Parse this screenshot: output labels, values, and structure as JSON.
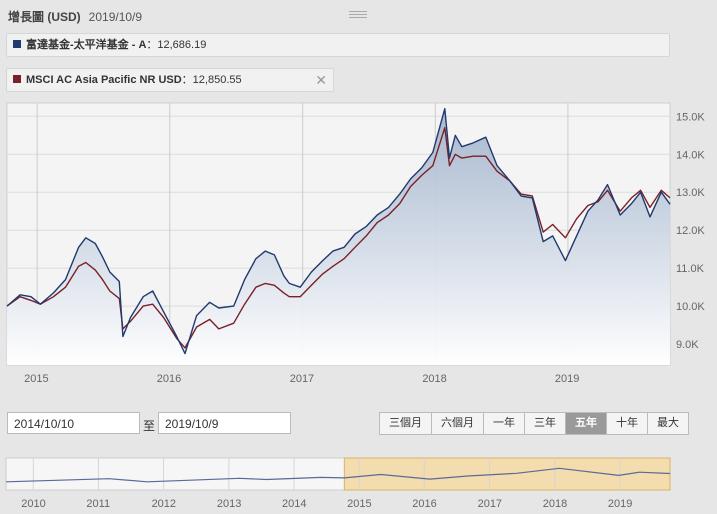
{
  "header": {
    "title": "增長圖 (USD)",
    "date": "2019/10/9"
  },
  "legend": [
    {
      "name": "富達基金-太平洋基金 - A",
      "value": "12,686.19",
      "color": "#1f3a6e"
    },
    {
      "name": "MSCI AC Asia Pacific NR USD",
      "value": "12,850.55",
      "color": "#7a2028",
      "closable": true
    }
  ],
  "colon": "：",
  "range": {
    "start": "2014/10/10",
    "to_label": "至",
    "end": "2019/10/9"
  },
  "period_buttons": [
    "三個月",
    "六個月",
    "一年",
    "三年",
    "五年",
    "十年",
    "最大"
  ],
  "active_period": "五年",
  "chart_data": {
    "type": "line",
    "x_range": [
      "2014-10-10",
      "2019-10-09"
    ],
    "x_ticks": [
      "2015",
      "2016",
      "2017",
      "2018",
      "2019"
    ],
    "y_ticks": [
      "9.0K",
      "10.0K",
      "11.0K",
      "12.0K",
      "13.0K",
      "14.0K",
      "15.0K"
    ],
    "y_tick_values": [
      9000,
      10000,
      11000,
      12000,
      13000,
      14000,
      15000
    ],
    "ylim": [
      8450,
      15350
    ],
    "y_axis_side": "right",
    "grid": true,
    "series": [
      {
        "name": "富達基金-太平洋基金 - A",
        "color": "#1f3a6e",
        "points": [
          [
            "2014-10-10",
            10000
          ],
          [
            "2014-11-15",
            10300
          ],
          [
            "2014-12-15",
            10250
          ],
          [
            "2015-01-10",
            10050
          ],
          [
            "2015-02-15",
            10350
          ],
          [
            "2015-03-20",
            10700
          ],
          [
            "2015-04-25",
            11550
          ],
          [
            "2015-05-15",
            11800
          ],
          [
            "2015-06-10",
            11650
          ],
          [
            "2015-06-30",
            11300
          ],
          [
            "2015-07-20",
            10900
          ],
          [
            "2015-08-15",
            10650
          ],
          [
            "2015-08-25",
            9200
          ],
          [
            "2015-09-15",
            9700
          ],
          [
            "2015-10-20",
            10250
          ],
          [
            "2015-11-15",
            10400
          ],
          [
            "2015-12-15",
            9850
          ],
          [
            "2016-01-20",
            9200
          ],
          [
            "2016-02-12",
            8750
          ],
          [
            "2016-03-15",
            9750
          ],
          [
            "2016-04-20",
            10100
          ],
          [
            "2016-05-15",
            9950
          ],
          [
            "2016-06-25",
            10000
          ],
          [
            "2016-07-25",
            10700
          ],
          [
            "2016-08-25",
            11250
          ],
          [
            "2016-09-20",
            11450
          ],
          [
            "2016-10-15",
            11350
          ],
          [
            "2016-11-10",
            10800
          ],
          [
            "2016-11-25",
            10600
          ],
          [
            "2016-12-25",
            10500
          ],
          [
            "2017-01-25",
            10900
          ],
          [
            "2017-02-25",
            11200
          ],
          [
            "2017-03-25",
            11450
          ],
          [
            "2017-04-25",
            11550
          ],
          [
            "2017-05-25",
            11900
          ],
          [
            "2017-06-25",
            12100
          ],
          [
            "2017-07-25",
            12400
          ],
          [
            "2017-08-25",
            12600
          ],
          [
            "2017-09-25",
            12950
          ],
          [
            "2017-10-25",
            13350
          ],
          [
            "2017-11-25",
            13650
          ],
          [
            "2017-12-25",
            14050
          ],
          [
            "2018-01-27",
            15200
          ],
          [
            "2018-02-09",
            13900
          ],
          [
            "2018-02-25",
            14500
          ],
          [
            "2018-03-15",
            14200
          ],
          [
            "2018-04-15",
            14300
          ],
          [
            "2018-05-20",
            14450
          ],
          [
            "2018-06-20",
            13700
          ],
          [
            "2018-07-25",
            13300
          ],
          [
            "2018-08-25",
            12900
          ],
          [
            "2018-09-25",
            12850
          ],
          [
            "2018-10-25",
            11700
          ],
          [
            "2018-11-20",
            11850
          ],
          [
            "2018-12-25",
            11200
          ],
          [
            "2019-01-25",
            11850
          ],
          [
            "2019-02-25",
            12500
          ],
          [
            "2019-03-25",
            12800
          ],
          [
            "2019-04-20",
            13200
          ],
          [
            "2019-05-25",
            12400
          ],
          [
            "2019-06-25",
            12700
          ],
          [
            "2019-07-20",
            13000
          ],
          [
            "2019-08-15",
            12350
          ],
          [
            "2019-09-15",
            13000
          ],
          [
            "2019-10-09",
            12686
          ]
        ]
      },
      {
        "name": "MSCI AC Asia Pacific NR USD",
        "color": "#7a2028",
        "points": [
          [
            "2014-10-10",
            10000
          ],
          [
            "2014-11-15",
            10250
          ],
          [
            "2014-12-15",
            10150
          ],
          [
            "2015-01-10",
            10050
          ],
          [
            "2015-02-15",
            10250
          ],
          [
            "2015-03-20",
            10500
          ],
          [
            "2015-04-25",
            11050
          ],
          [
            "2015-05-15",
            11150
          ],
          [
            "2015-06-10",
            10950
          ],
          [
            "2015-06-30",
            10700
          ],
          [
            "2015-07-20",
            10400
          ],
          [
            "2015-08-15",
            10200
          ],
          [
            "2015-08-25",
            9400
          ],
          [
            "2015-09-15",
            9600
          ],
          [
            "2015-10-20",
            10000
          ],
          [
            "2015-11-15",
            10050
          ],
          [
            "2015-12-15",
            9700
          ],
          [
            "2016-01-20",
            9150
          ],
          [
            "2016-02-12",
            8900
          ],
          [
            "2016-03-15",
            9450
          ],
          [
            "2016-04-20",
            9650
          ],
          [
            "2016-05-15",
            9400
          ],
          [
            "2016-06-25",
            9550
          ],
          [
            "2016-07-25",
            10050
          ],
          [
            "2016-08-25",
            10500
          ],
          [
            "2016-09-20",
            10600
          ],
          [
            "2016-10-15",
            10550
          ],
          [
            "2016-11-10",
            10350
          ],
          [
            "2016-11-25",
            10250
          ],
          [
            "2016-12-25",
            10250
          ],
          [
            "2017-01-25",
            10550
          ],
          [
            "2017-02-25",
            10850
          ],
          [
            "2017-03-25",
            11050
          ],
          [
            "2017-04-25",
            11250
          ],
          [
            "2017-05-25",
            11550
          ],
          [
            "2017-06-25",
            11850
          ],
          [
            "2017-07-25",
            12200
          ],
          [
            "2017-08-25",
            12400
          ],
          [
            "2017-09-25",
            12700
          ],
          [
            "2017-10-25",
            13150
          ],
          [
            "2017-11-25",
            13450
          ],
          [
            "2017-12-25",
            13700
          ],
          [
            "2018-01-27",
            14700
          ],
          [
            "2018-02-09",
            13700
          ],
          [
            "2018-02-25",
            14000
          ],
          [
            "2018-03-15",
            13900
          ],
          [
            "2018-04-15",
            13950
          ],
          [
            "2018-05-20",
            13950
          ],
          [
            "2018-06-20",
            13550
          ],
          [
            "2018-07-25",
            13300
          ],
          [
            "2018-08-25",
            12950
          ],
          [
            "2018-09-25",
            12900
          ],
          [
            "2018-10-25",
            11950
          ],
          [
            "2018-11-20",
            12150
          ],
          [
            "2018-12-25",
            11800
          ],
          [
            "2019-01-25",
            12300
          ],
          [
            "2019-02-25",
            12650
          ],
          [
            "2019-03-25",
            12750
          ],
          [
            "2019-04-20",
            13050
          ],
          [
            "2019-05-25",
            12500
          ],
          [
            "2019-06-25",
            12850
          ],
          [
            "2019-07-20",
            13050
          ],
          [
            "2019-08-15",
            12600
          ],
          [
            "2019-09-15",
            13050
          ],
          [
            "2019-10-09",
            12851
          ]
        ]
      }
    ],
    "navigator": {
      "x_range": [
        "2009-08-01",
        "2019-10-09"
      ],
      "x_ticks": [
        "2010",
        "2011",
        "2012",
        "2013",
        "2014",
        "2015",
        "2016",
        "2017",
        "2018",
        "2019"
      ],
      "selection": [
        "2014-10-10",
        "2019-10-09"
      ],
      "points": [
        [
          "2009-08-01",
          0.22
        ],
        [
          "2010-06-01",
          0.3
        ],
        [
          "2011-03-01",
          0.38
        ],
        [
          "2011-10-01",
          0.22
        ],
        [
          "2012-06-01",
          0.3
        ],
        [
          "2013-03-01",
          0.4
        ],
        [
          "2013-08-01",
          0.34
        ],
        [
          "2014-06-01",
          0.45
        ],
        [
          "2014-10-10",
          0.42
        ],
        [
          "2015-05-01",
          0.6
        ],
        [
          "2016-02-01",
          0.36
        ],
        [
          "2016-09-01",
          0.52
        ],
        [
          "2017-06-01",
          0.66
        ],
        [
          "2018-01-27",
          0.92
        ],
        [
          "2018-12-25",
          0.55
        ],
        [
          "2019-04-20",
          0.72
        ],
        [
          "2019-10-09",
          0.65
        ]
      ]
    }
  }
}
